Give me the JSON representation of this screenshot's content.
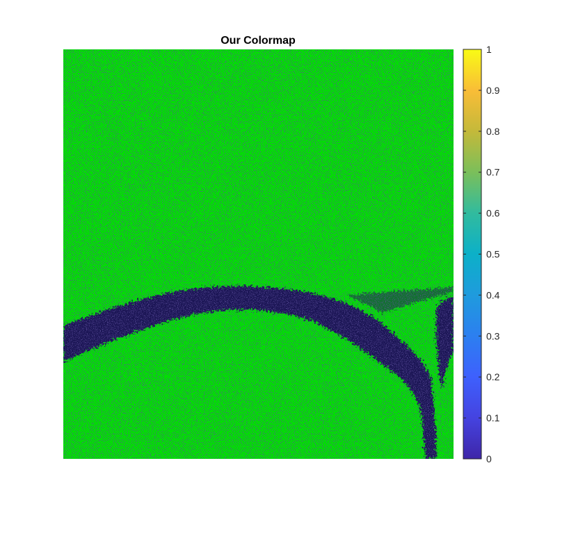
{
  "chart_data": {
    "type": "heatmap",
    "title": "Our Colormap",
    "xlabel": "",
    "ylabel": "",
    "axis_ticks_visible": false,
    "clim": [
      0,
      1
    ],
    "colormap": "parula",
    "values_present": [
      0,
      0.6
    ],
    "dominant_value": 0.6,
    "band_value": 0,
    "description_of_field": "mostly value 0.6 (green); arched band of value 0 (dark navy) across middle, curving down on right side",
    "colorbar": {
      "ticks": [
        0,
        0.1,
        0.2,
        0.3,
        0.4,
        0.5,
        0.6,
        0.7,
        0.8,
        0.9,
        1
      ],
      "tick_labels": [
        "0",
        "0.1",
        "0.2",
        "0.3",
        "0.4",
        "0.5",
        "0.6",
        "0.7",
        "0.8",
        "0.9",
        "1"
      ],
      "location": "right"
    }
  },
  "colors": {
    "field_green": "#00e100",
    "band_navy": "#1c1456",
    "axis": "#262626"
  }
}
